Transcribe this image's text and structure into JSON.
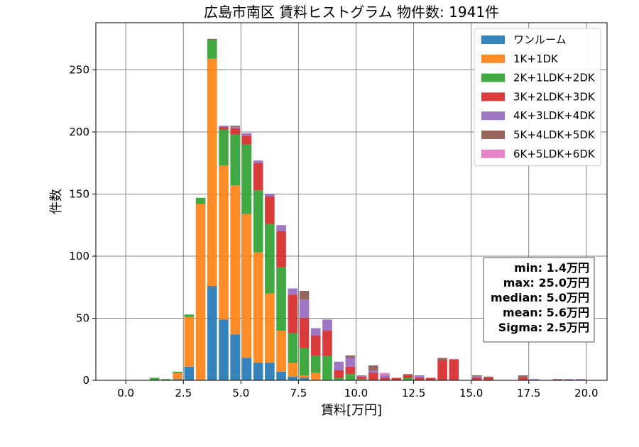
{
  "chart_data": {
    "type": "bar",
    "title": "広島市南区 賃料ヒストグラム 物件数: 1941件",
    "xlabel": "賃料[万円]",
    "ylabel": "件数",
    "xlim": [
      -1.3,
      20.9
    ],
    "ylim": [
      0,
      288
    ],
    "xticks": [
      0.0,
      2.5,
      5.0,
      7.5,
      10.0,
      12.5,
      15.0,
      17.5,
      20.0
    ],
    "xtick_labels": [
      "0.0",
      "2.5",
      "5.0",
      "7.5",
      "10.0",
      "12.5",
      "15.0",
      "17.5",
      "20.0"
    ],
    "yticks": [
      0,
      50,
      100,
      150,
      200,
      250
    ],
    "ytick_labels": [
      "0",
      "50",
      "100",
      "150",
      "200",
      "250"
    ],
    "grid": true,
    "legend_position": "top-right",
    "stacked": true,
    "bin_width": 0.5,
    "bins": [
      1.0,
      1.5,
      2.0,
      2.5,
      3.0,
      3.5,
      4.0,
      4.5,
      5.0,
      5.5,
      6.0,
      6.5,
      7.0,
      7.5,
      8.0,
      8.5,
      9.0,
      9.5,
      10.0,
      10.5,
      11.0,
      11.5,
      12.0,
      12.5,
      13.0,
      13.5,
      14.0,
      15.0,
      15.5,
      17.0,
      17.5,
      18.5,
      19.0,
      19.5
    ],
    "series": [
      {
        "name": "ワンルーム",
        "color": "#1f77b4",
        "values": [
          0,
          0,
          1,
          11,
          0,
          76,
          49,
          37,
          18,
          14,
          14,
          7,
          3,
          2,
          0,
          0,
          0,
          0,
          0,
          0,
          0,
          0,
          0,
          0,
          0,
          0,
          0,
          0,
          0,
          0,
          0,
          0,
          0,
          0
        ]
      },
      {
        "name": "1K+1DK",
        "color": "#ff7f0e",
        "values": [
          0,
          0,
          5,
          40,
          142,
          183,
          124,
          120,
          116,
          89,
          56,
          33,
          11,
          2,
          6,
          0,
          0,
          0,
          0,
          0,
          0,
          0,
          0,
          0,
          0,
          0,
          0,
          0,
          0,
          0,
          0,
          0,
          0,
          0
        ]
      },
      {
        "name": "2K+1LDK+2DK",
        "color": "#2ca02c",
        "values": [
          2,
          1,
          1,
          2,
          5,
          15,
          29,
          41,
          56,
          50,
          56,
          51,
          24,
          22,
          14,
          20,
          2,
          5,
          1,
          0,
          0,
          0,
          2,
          0,
          0,
          0,
          0,
          0,
          0,
          0,
          0,
          0,
          0,
          0
        ]
      },
      {
        "name": "3K+2LDK+3DK",
        "color": "#d62728",
        "values": [
          0,
          0,
          0,
          0,
          0,
          0,
          2,
          5,
          7,
          22,
          22,
          29,
          31,
          24,
          16,
          20,
          6,
          6,
          2,
          6,
          2,
          2,
          2,
          2,
          2,
          16,
          17,
          2,
          2,
          2,
          0,
          0,
          0,
          0
        ]
      },
      {
        "name": "4K+3LDK+4DK",
        "color": "#9467bd",
        "values": [
          0,
          0,
          0,
          0,
          0,
          0,
          1,
          1,
          2,
          2,
          2,
          5,
          5,
          15,
          6,
          9,
          7,
          7,
          1,
          2,
          2,
          0,
          0,
          2,
          0,
          0,
          0,
          1,
          0,
          0,
          1,
          0,
          1,
          1
        ]
      },
      {
        "name": "5K+4LDK+5DK",
        "color": "#8c564b",
        "values": [
          0,
          0,
          0,
          0,
          0,
          1,
          0,
          1,
          0,
          0,
          0,
          0,
          0,
          7,
          0,
          0,
          0,
          2,
          0,
          4,
          0,
          0,
          1,
          0,
          0,
          2,
          0,
          1,
          1,
          2,
          0,
          1,
          0,
          0
        ]
      },
      {
        "name": "6K+5LDK+6DK",
        "color": "#e377c2",
        "values": [
          0,
          0,
          0,
          0,
          0,
          0,
          0,
          0,
          0,
          0,
          0,
          0,
          0,
          0,
          0,
          0,
          0,
          0,
          0,
          0,
          2,
          0,
          0,
          0,
          0,
          0,
          0,
          0,
          0,
          0,
          0,
          0,
          0,
          0
        ]
      }
    ],
    "stats": [
      "min: 1.4万円",
      "max: 25.0万円",
      "median: 5.0万円",
      "mean: 5.6万円",
      "Sigma: 2.5万円"
    ]
  }
}
